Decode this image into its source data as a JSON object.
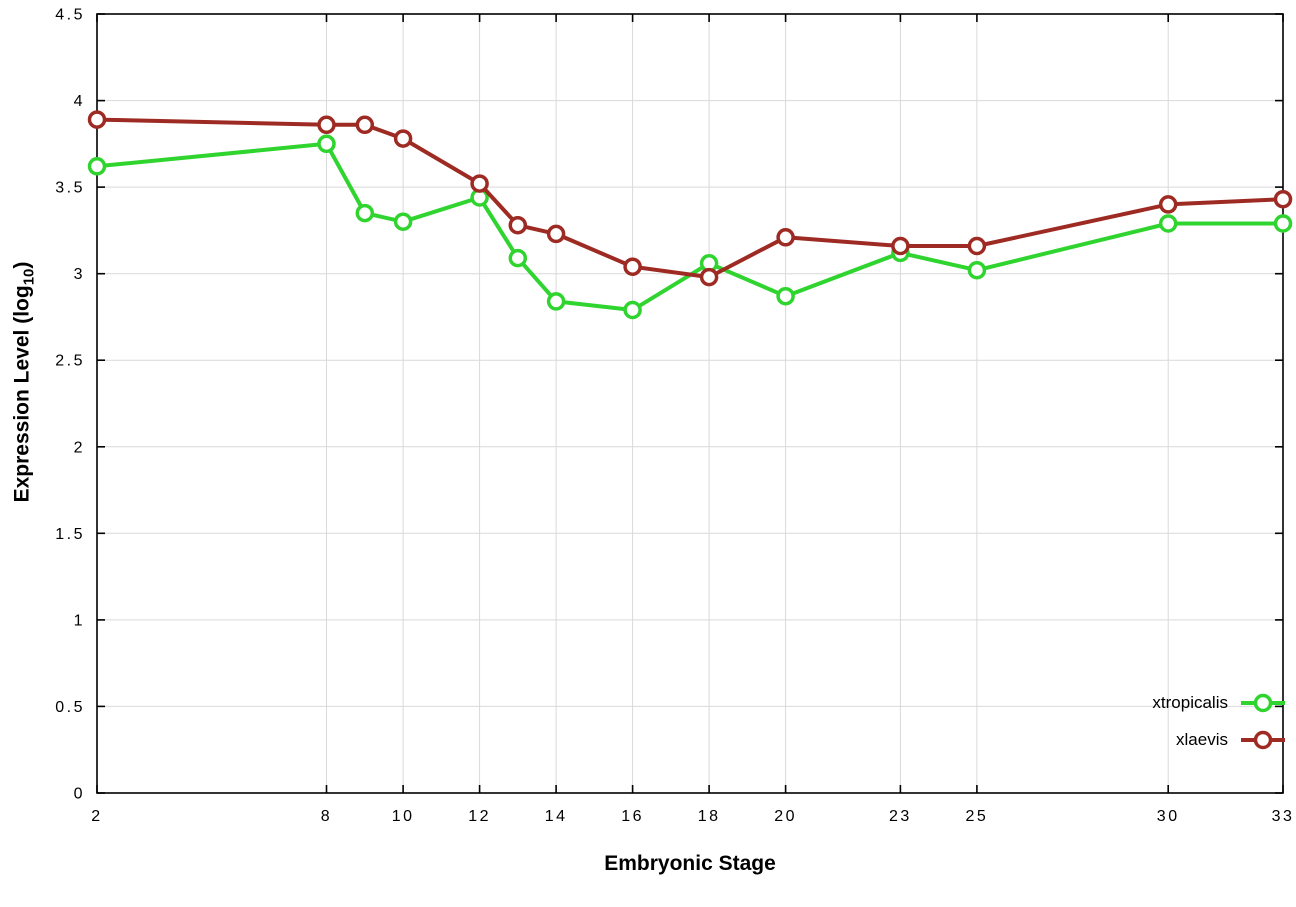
{
  "figure": {
    "background": "#ffffff",
    "border_color": "#000000",
    "grid_color": "#d9d9d9",
    "tick_color": "#000000"
  },
  "chart_data": {
    "type": "line",
    "title": "",
    "xlabel": "Embryonic Stage",
    "ylabel": {
      "text": "Expression Level (log",
      "subscript": "10",
      "suffix": ")"
    },
    "xlim": [
      2,
      33
    ],
    "ylim": [
      0,
      4.5
    ],
    "xticks": [
      2,
      8,
      10,
      12,
      14,
      16,
      18,
      20,
      23,
      25,
      30,
      33
    ],
    "yticks": [
      "0",
      "0.5",
      "1",
      "1.5",
      "2",
      "2.5",
      "3",
      "3.5",
      "4",
      "4.5"
    ],
    "grid": true,
    "legend_position": "bottom-right",
    "x": [
      2,
      8,
      9,
      10,
      12,
      13,
      14,
      16,
      18,
      20,
      23,
      25,
      30,
      33
    ],
    "series": [
      {
        "name": "xtropicalis",
        "color": "#2fd42f",
        "marker": "open-circle",
        "values": [
          3.62,
          3.75,
          3.35,
          3.3,
          3.44,
          3.09,
          2.84,
          2.79,
          3.06,
          2.87,
          3.12,
          3.02,
          3.29,
          3.29
        ]
      },
      {
        "name": "xlaevis",
        "color": "#9e2b23",
        "marker": "open-circle",
        "values": [
          3.89,
          3.86,
          3.86,
          3.78,
          3.52,
          3.28,
          3.23,
          3.04,
          2.98,
          3.21,
          3.16,
          3.16,
          3.4,
          3.43
        ]
      }
    ]
  }
}
